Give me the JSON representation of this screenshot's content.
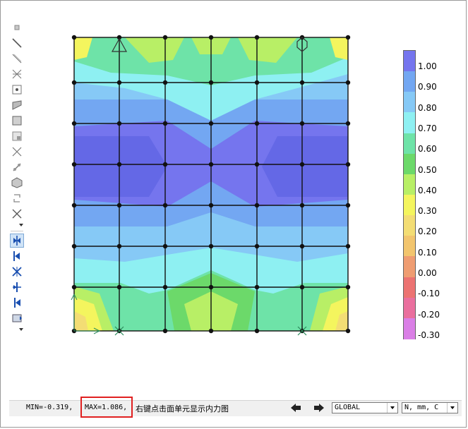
{
  "toolbar": {
    "icons": [
      "node-icon",
      "line-element-icon",
      "truss-element-icon",
      "spring-icon",
      "panel-icon",
      "plate-icon",
      "shell-icon",
      "solid-icon",
      "beam-cross-icon",
      "link-icon",
      "cube-icon",
      "release-icon",
      "support-x-icon",
      "show-plate-force-icon",
      "plate-force-icon",
      "moment-icon",
      "shear-icon",
      "axial-icon",
      "deformation-icon"
    ]
  },
  "legend": {
    "labels": [
      "1.00",
      "0.90",
      "0.80",
      "0.70",
      "0.60",
      "0.50",
      "0.40",
      "0.30",
      "0.20",
      "0.10",
      "0.00",
      "-0.10",
      "-0.20",
      "-0.30"
    ],
    "colors": [
      "#7575ee",
      "#73a7f2",
      "#86c9f6",
      "#8ef0f2",
      "#6ee3a8",
      "#6cd96a",
      "#b8ef66",
      "#f4f55e",
      "#f3dd74",
      "#f2c56e",
      "#ef9d72",
      "#ec7372",
      "#ea6f9e",
      "#da7fe6"
    ]
  },
  "status": {
    "min": "MIN=-0.319,",
    "max": "MAX=1.086,",
    "hint": "右键点击面单元显示内力图",
    "coord_system": "GLOBAL",
    "units": "N, mm, C"
  }
}
